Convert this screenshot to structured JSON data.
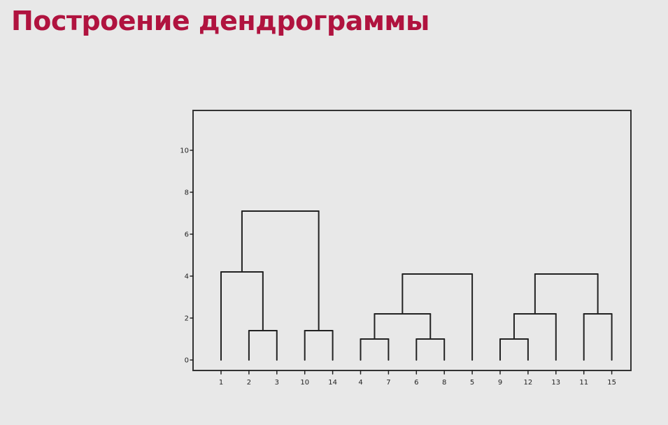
{
  "slide": {
    "title": "Построение дендрограммы",
    "title_color": "#b0133f"
  },
  "chart_data": {
    "type": "dendrogram",
    "title": "",
    "xlabel": "",
    "ylabel": "",
    "leaf_order": [
      "1",
      "2",
      "3",
      "10",
      "14",
      "4",
      "7",
      "6",
      "8",
      "5",
      "9",
      "12",
      "13",
      "11",
      "15"
    ],
    "ylim": [
      -0.5,
      11.9
    ],
    "yticks": [
      0,
      2,
      4,
      6,
      8,
      10
    ],
    "merges": [
      {
        "left": "leaf:1",
        "right": "leaf:2",
        "height": 1.4,
        "id": "m_2_3"
      },
      {
        "left": "leaf:3",
        "right": "leaf:4",
        "height": 1.4,
        "id": "m_10_14"
      },
      {
        "left": "leaf:0",
        "right": "m_2_3",
        "height": 4.2,
        "id": "m_1_2_3"
      },
      {
        "left": "m_1_2_3",
        "right": "m_10_14",
        "height": 7.1,
        "id": "m_A"
      },
      {
        "left": "leaf:5",
        "right": "leaf:6",
        "height": 1.0,
        "id": "m_4_7"
      },
      {
        "left": "leaf:7",
        "right": "leaf:8",
        "height": 1.0,
        "id": "m_6_8"
      },
      {
        "left": "m_4_7",
        "right": "m_6_8",
        "height": 2.2,
        "id": "m_4_7_6_8"
      },
      {
        "left": "m_4_7_6_8",
        "right": "leaf:9",
        "height": 4.1,
        "id": "m_B"
      },
      {
        "left": "leaf:10",
        "right": "leaf:11",
        "height": 1.0,
        "id": "m_9_12"
      },
      {
        "left": "m_9_12",
        "right": "leaf:12",
        "height": 2.2,
        "id": "m_9_12_13"
      },
      {
        "left": "leaf:13",
        "right": "leaf:14",
        "height": 2.2,
        "id": "m_11_15"
      },
      {
        "left": "m_9_12_13",
        "right": "m_11_15",
        "height": 4.1,
        "id": "m_C"
      }
    ],
    "grid": false,
    "line_color": "#222222"
  }
}
